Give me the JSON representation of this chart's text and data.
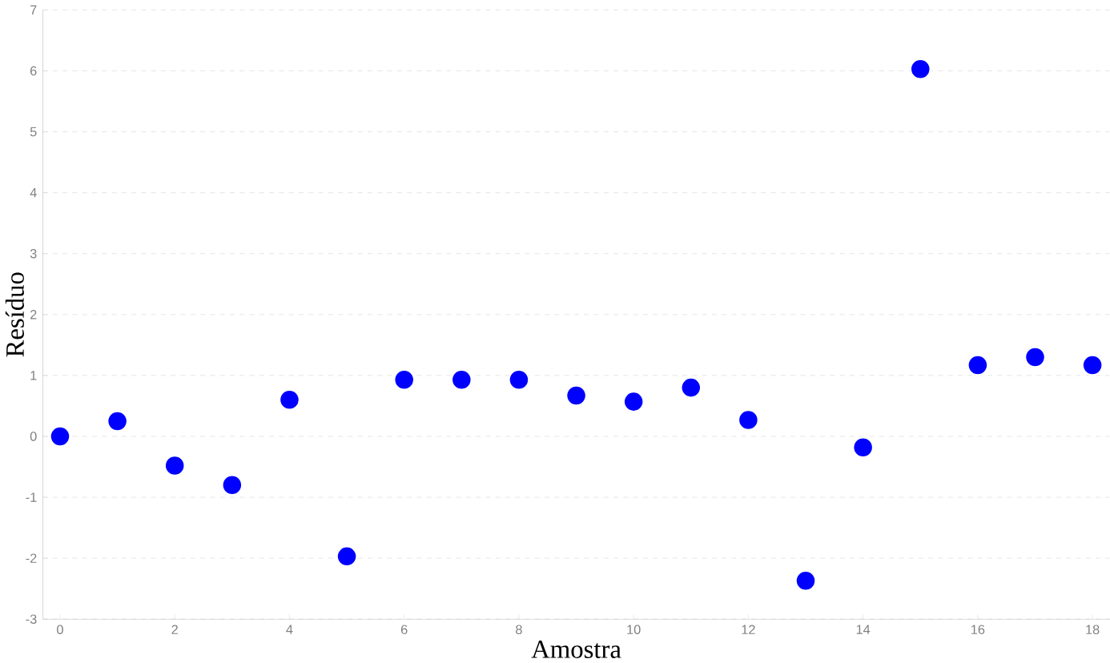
{
  "chart_data": {
    "type": "scatter",
    "xlabel": "Amostra",
    "ylabel": "Resíduo",
    "x": [
      0,
      1,
      2,
      3,
      4,
      5,
      6,
      7,
      8,
      9,
      10,
      11,
      12,
      13,
      14,
      15,
      16,
      17,
      18
    ],
    "series": [
      {
        "color": "#0000ff",
        "values": [
          0.0,
          0.25,
          -0.48,
          -0.8,
          0.6,
          -1.97,
          0.93,
          0.93,
          0.93,
          0.67,
          0.57,
          0.8,
          0.27,
          -2.37,
          -0.18,
          6.03,
          1.17,
          1.3,
          1.17
        ]
      }
    ],
    "xlim": [
      -0.3,
      18.3
    ],
    "xticks": [
      0,
      2,
      4,
      6,
      8,
      10,
      12,
      14,
      16,
      18
    ],
    "ylim": [
      -3,
      7
    ],
    "yticks": [
      -3,
      -2,
      -1,
      0,
      1,
      2,
      3,
      4,
      5,
      6,
      7
    ],
    "grid": "y",
    "marker": "circle"
  }
}
